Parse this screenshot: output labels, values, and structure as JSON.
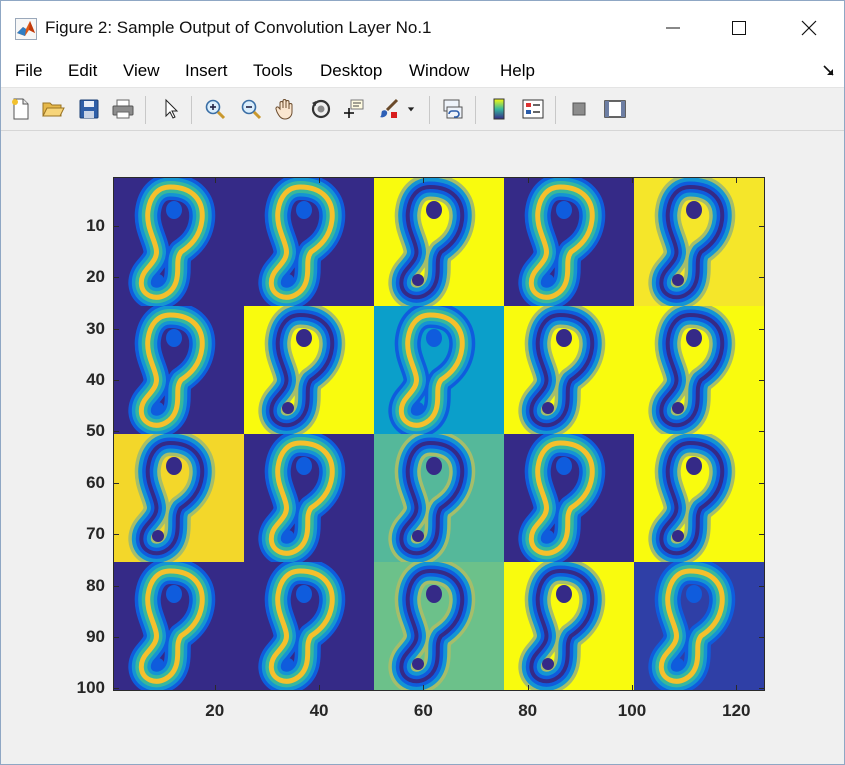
{
  "window": {
    "title": "Figure 2: Sample Output of Convolution Layer No.1"
  },
  "menu": {
    "items": [
      "File",
      "Edit",
      "View",
      "Insert",
      "Tools",
      "Desktop",
      "Window",
      "Help"
    ]
  },
  "toolbar": {
    "buttons": [
      {
        "name": "new-figure",
        "icon": "new-file-icon"
      },
      {
        "name": "open-file",
        "icon": "folder-open-icon"
      },
      {
        "name": "save-figure",
        "icon": "save-icon"
      },
      {
        "name": "print-figure",
        "icon": "printer-icon"
      },
      {
        "name": "edit-plot",
        "icon": "pointer-arrow-icon"
      },
      {
        "name": "zoom-in",
        "icon": "zoom-in-icon"
      },
      {
        "name": "zoom-out",
        "icon": "zoom-out-icon"
      },
      {
        "name": "pan",
        "icon": "hand-icon"
      },
      {
        "name": "rotate-3d",
        "icon": "rotate-icon"
      },
      {
        "name": "data-cursor",
        "icon": "data-cursor-icon"
      },
      {
        "name": "brush",
        "icon": "brush-icon"
      },
      {
        "name": "link-plot",
        "icon": "link-icon"
      },
      {
        "name": "insert-colorbar",
        "icon": "colorbar-icon"
      },
      {
        "name": "insert-legend",
        "icon": "legend-icon"
      },
      {
        "name": "hide-plot-tools",
        "icon": "hide-tools-icon"
      },
      {
        "name": "show-plot-tools",
        "icon": "show-tools-icon"
      }
    ]
  },
  "plot": {
    "y_ticks": [
      "10",
      "20",
      "30",
      "40",
      "50",
      "60",
      "70",
      "80",
      "90",
      "100"
    ],
    "x_ticks": [
      "20",
      "40",
      "60",
      "80",
      "100",
      "120"
    ],
    "grid_rows": 4,
    "grid_cols": 5,
    "tile_backgrounds": [
      [
        "#352a87",
        "#352a87",
        "#f9fb0e",
        "#352a87",
        "#f5e62a"
      ],
      [
        "#352a87",
        "#f9fb0e",
        "#0b9fca",
        "#f9fb0e",
        "#f9fb0e"
      ],
      [
        "#f3d72a",
        "#352a87",
        "#55b89a",
        "#352a87",
        "#f9fb0e"
      ],
      [
        "#352a87",
        "#352a87",
        "#6cc18a",
        "#f9fb0e",
        "#2f3fa6"
      ]
    ],
    "colors": {
      "dark_blue": "#352a87",
      "blue": "#0f5cdd",
      "cyan": "#1495d3",
      "teal": "#37b89d",
      "yellow_green": "#a5be6a",
      "orange": "#f5c02c",
      "yellow": "#f9fb0e"
    }
  }
}
